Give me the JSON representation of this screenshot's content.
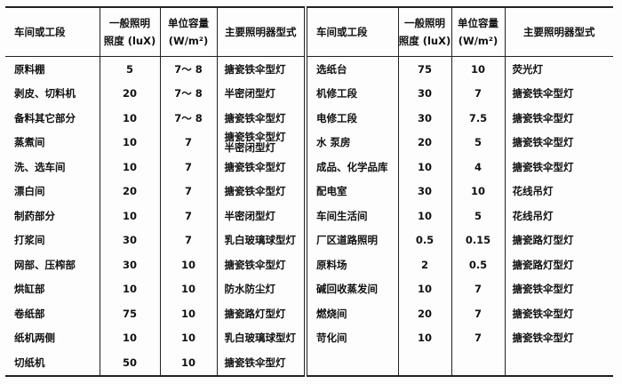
{
  "headers": {
    "section": "车间或工段",
    "illuminance_line1": "一般照明",
    "illuminance_line2": "照度 (luX)",
    "capacity_line1": "单位容量",
    "capacity_line2": "(W/m²)",
    "lamp": "主要照明器型式"
  },
  "left_rows": [
    {
      "section": "原料棚",
      "lux": "5",
      "capacity": "7～ 8",
      "lamp": "搪瓷铁伞型灯"
    },
    {
      "section": "剥皮、切料机",
      "lux": "20",
      "capacity": "7～ 8",
      "lamp": "半密闭型灯"
    },
    {
      "section": "备料其它部分",
      "lux": "10",
      "capacity": "7～ 8",
      "lamp": "搪瓷铁伞型灯"
    },
    {
      "section": "蒸煮间",
      "lux": "10",
      "capacity": "7",
      "lamp": "搪瓷铁伞型灯\n半密闭型灯"
    },
    {
      "section": "洗、选车间",
      "lux": "10",
      "capacity": "7",
      "lamp": "搪瓷铁伞型灯"
    },
    {
      "section": "漂白间",
      "lux": "20",
      "capacity": "7",
      "lamp": "搪瓷铁伞型灯"
    },
    {
      "section": "制药部分",
      "lux": "10",
      "capacity": "7",
      "lamp": "半密闭型灯"
    },
    {
      "section": "打浆间",
      "lux": "30",
      "capacity": "7",
      "lamp": "乳白玻璃球型灯"
    },
    {
      "section": "网部、压榨部",
      "lux": "30",
      "capacity": "10",
      "lamp": "搪瓷铁伞型灯"
    },
    {
      "section": "烘缸部",
      "lux": "10",
      "capacity": "10",
      "lamp": "防水防尘灯"
    },
    {
      "section": "卷纸部",
      "lux": "75",
      "capacity": "10",
      "lamp": "搪瓷路灯型灯"
    },
    {
      "section": "纸机两侧",
      "lux": "10",
      "capacity": "10",
      "lamp": "乳白玻璃球型灯"
    },
    {
      "section": "切纸机",
      "lux": "50",
      "capacity": "10",
      "lamp": "搪瓷铁伞型灯"
    }
  ],
  "right_rows": [
    {
      "section": "选纸台",
      "lux": "75",
      "capacity": "10",
      "lamp": "荧光灯"
    },
    {
      "section": "机修工段",
      "lux": "30",
      "capacity": "7",
      "lamp": "搪瓷铁伞型灯"
    },
    {
      "section": "电修工段",
      "lux": "30",
      "capacity": "7.5",
      "lamp": "搪瓷铁伞型灯"
    },
    {
      "section": "水 泵房",
      "lux": "20",
      "capacity": "5",
      "lamp": "搪瓷铁伞型灯"
    },
    {
      "section": "成品、化学品库",
      "lux": "10",
      "capacity": "4",
      "lamp": "搪瓷铁伞型灯"
    },
    {
      "section": "配电室",
      "lux": "30",
      "capacity": "10",
      "lamp": "花线吊灯"
    },
    {
      "section": "车间生活间",
      "lux": "10",
      "capacity": "5",
      "lamp": "花线吊灯"
    },
    {
      "section": "厂区道路照明",
      "lux": "0.5",
      "capacity": "0.15",
      "lamp": "搪瓷路灯型灯"
    },
    {
      "section": "原料场",
      "lux": "2",
      "capacity": "0.5",
      "lamp": "搪瓷路灯型灯"
    },
    {
      "section": "碱回收蒸发间",
      "lux": "10",
      "capacity": "7",
      "lamp": "搪瓷铁伞型灯"
    },
    {
      "section": "燃烧间",
      "lux": "20",
      "capacity": "7",
      "lamp": "搪瓷铁伞型灯"
    },
    {
      "section": "苛化间",
      "lux": "10",
      "capacity": "7",
      "lamp": "搪瓷铁伞型灯"
    }
  ]
}
